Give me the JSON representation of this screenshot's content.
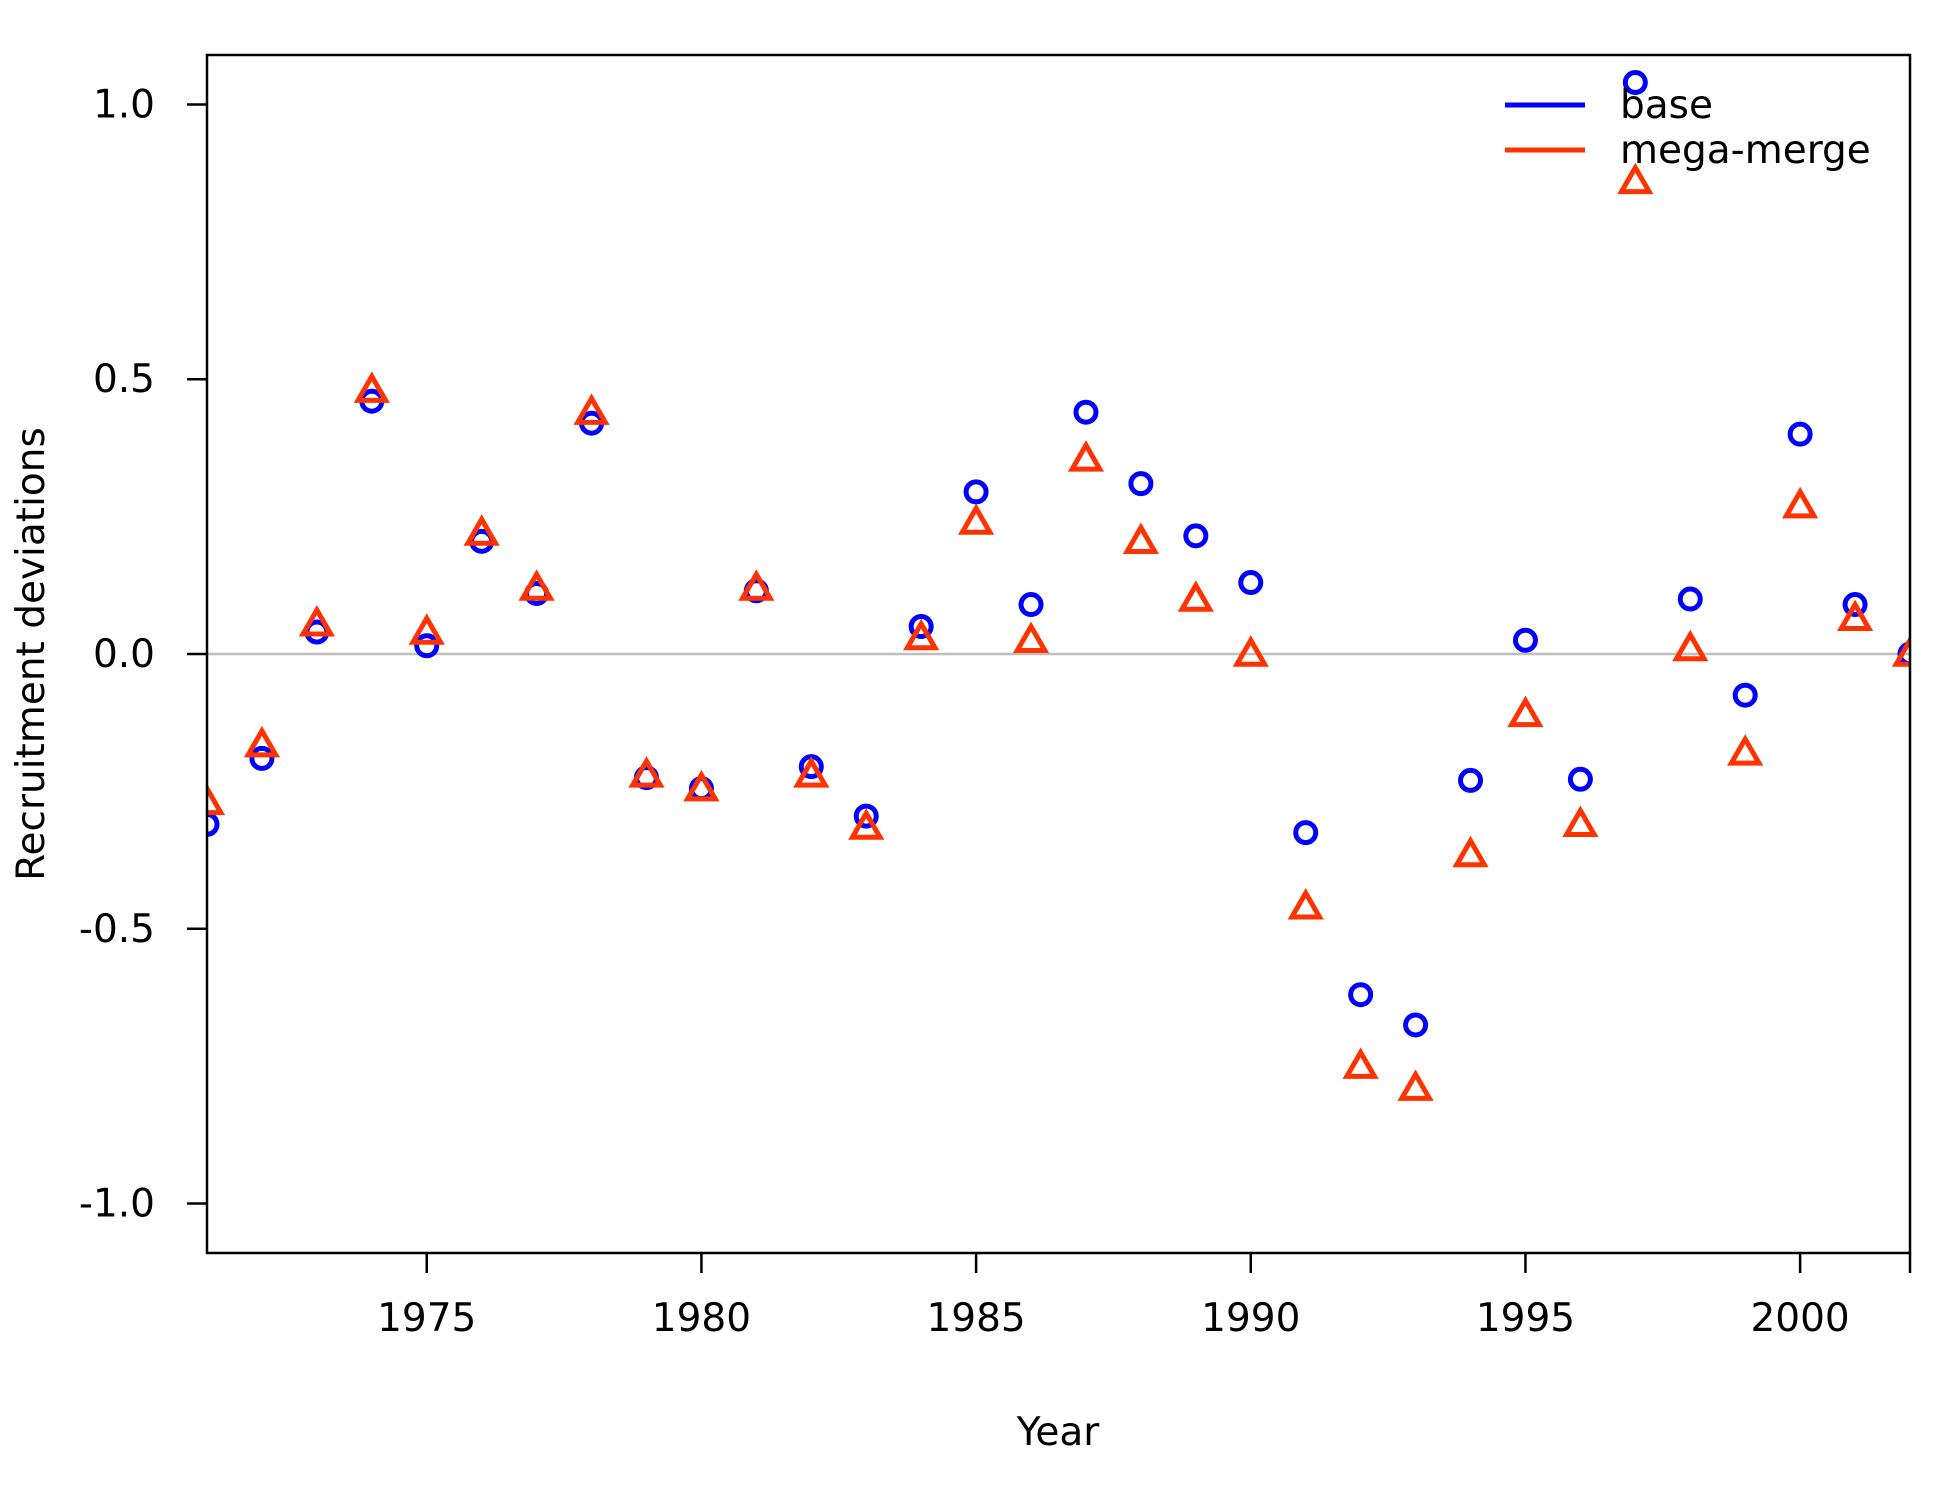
{
  "chart_data": {
    "type": "scatter",
    "xlabel": "Year",
    "ylabel": "Recruitment deviations",
    "xlim": [
      1971,
      2002
    ],
    "ylim": [
      -1.09,
      1.09
    ],
    "x_ticks": [
      1975,
      1980,
      1985,
      1990,
      1995,
      2000
    ],
    "x_tick_labels": [
      "1975",
      "1980",
      "1985",
      "1990",
      "1995",
      "2000"
    ],
    "y_ticks": [
      -1.0,
      -0.5,
      0.0,
      0.5,
      1.0
    ],
    "y_tick_labels": [
      "-1.0",
      "-0.5",
      "0.0",
      "0.5",
      "1.0"
    ],
    "reference_line": 0,
    "grid": false,
    "legend_position": "top-right",
    "x": [
      1971,
      1972,
      1973,
      1974,
      1975,
      1976,
      1977,
      1978,
      1979,
      1980,
      1981,
      1982,
      1983,
      1984,
      1985,
      1986,
      1987,
      1988,
      1989,
      1990,
      1991,
      1992,
      1993,
      1994,
      1995,
      1996,
      1997,
      1998,
      1999,
      2000,
      2001,
      2002
    ],
    "series": [
      {
        "name": "base",
        "color": "#0000ff",
        "marker": "circle",
        "values": [
          -0.31,
          -0.19,
          0.04,
          0.46,
          0.015,
          0.205,
          0.11,
          0.42,
          -0.225,
          -0.245,
          0.115,
          -0.205,
          -0.295,
          0.05,
          0.295,
          0.09,
          0.44,
          0.31,
          0.215,
          0.13,
          -0.325,
          -0.62,
          -0.675,
          -0.23,
          0.025,
          -0.228,
          1.04,
          0.1,
          -0.075,
          0.4,
          0.09,
          0.0
        ]
      },
      {
        "name": "mega-merge",
        "color": "#ff3300",
        "marker": "triangle",
        "values": [
          -0.27,
          -0.165,
          0.055,
          0.48,
          0.04,
          0.22,
          0.12,
          0.44,
          -0.22,
          -0.245,
          0.12,
          -0.22,
          -0.315,
          0.03,
          0.24,
          0.025,
          0.355,
          0.205,
          0.1,
          0.0,
          -0.46,
          -0.75,
          -0.79,
          -0.365,
          -0.11,
          -0.31,
          0.86,
          0.01,
          -0.18,
          0.27,
          0.065,
          0.0
        ]
      }
    ]
  }
}
